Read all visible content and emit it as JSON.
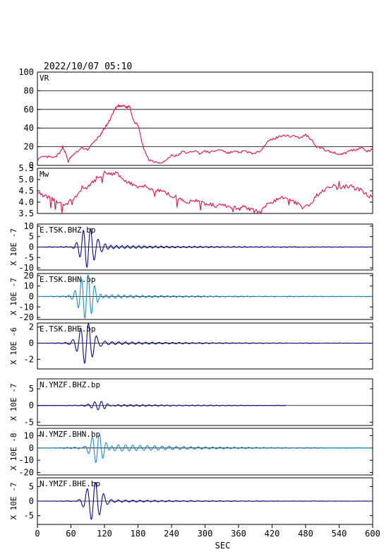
{
  "header": {
    "datetime": "2022/10/07  05:10"
  },
  "colors": {
    "vr": "#e0104a",
    "mw": "#e0104a",
    "dark_trace": "#0a0a8c",
    "light_trace": "#1a8fd0",
    "frame": "#000000"
  },
  "x_axis": {
    "label": "SEC",
    "ticks": [
      "0",
      "60",
      "120",
      "180",
      "240",
      "300",
      "360",
      "420",
      "480",
      "540",
      "600"
    ]
  },
  "panels": [
    {
      "id": "vr",
      "title": "VR",
      "unit": "",
      "ticks": [
        "100",
        "80",
        "60",
        "40",
        "20",
        "0"
      ]
    },
    {
      "id": "mw",
      "title": "Mw",
      "unit": "",
      "ticks": [
        "5.5",
        "5.0",
        "4.5",
        "4.0",
        "3.5"
      ]
    },
    {
      "id": "tsk_bhz",
      "title": "E.TSK.BHZ.bp",
      "unit": "X 10E -7",
      "ticks": [
        "10",
        "5",
        "0",
        "-5",
        "-10"
      ]
    },
    {
      "id": "tsk_bhn",
      "title": "E.TSK.BHN.bp",
      "unit": "X 10E -7",
      "ticks": [
        "20",
        "10",
        "0",
        "-10",
        "-20"
      ]
    },
    {
      "id": "tsk_bhe",
      "title": "E.TSK.BHE.bp",
      "unit": "X 10E -6",
      "ticks": [
        "2",
        "0",
        "-2"
      ]
    },
    {
      "id": "ymzf_bhz",
      "title": "N.YMZF.BHZ.bp",
      "unit": "X 10E -7",
      "ticks": [
        "5",
        "0",
        "-5"
      ]
    },
    {
      "id": "ymzf_bhn",
      "title": "N.YMZF.BHN.bp",
      "unit": "X 10E -8",
      "ticks": [
        "10",
        "0",
        "-10",
        "-20"
      ]
    },
    {
      "id": "ymzf_bhe",
      "title": "N.YMZF.BHE.bp",
      "unit": "X 10E -7",
      "ticks": [
        "5",
        "0",
        "-5"
      ]
    }
  ],
  "chart_data": {
    "type": "line",
    "x_range": [
      0,
      600
    ],
    "vr": {
      "ylim": [
        0,
        100
      ],
      "x": [
        0,
        10,
        20,
        30,
        40,
        45,
        50,
        55,
        60,
        70,
        80,
        90,
        100,
        110,
        115,
        120,
        125,
        130,
        135,
        140,
        145,
        150,
        155,
        160,
        165,
        170,
        175,
        180,
        185,
        190,
        200,
        210,
        220,
        230,
        240,
        250,
        260,
        270,
        280,
        290,
        300,
        310,
        320,
        330,
        340,
        350,
        360,
        370,
        380,
        390,
        400,
        410,
        420,
        430,
        440,
        450,
        460,
        470,
        480,
        490,
        500,
        510,
        520,
        530,
        540,
        550,
        560,
        570,
        580,
        590,
        600
      ],
      "y": [
        6,
        9,
        9,
        8,
        13,
        20,
        14,
        4,
        9,
        14,
        19,
        17,
        24,
        31,
        34,
        40,
        44,
        49,
        56,
        61,
        64,
        63,
        64,
        62,
        64,
        52,
        45,
        44,
        30,
        18,
        6,
        4,
        3,
        5,
        11,
        10,
        15,
        13,
        16,
        13,
        15,
        14,
        16,
        17,
        13,
        15,
        14,
        15,
        14,
        12,
        17,
        24,
        28,
        30,
        33,
        31,
        32,
        29,
        33,
        28,
        20,
        18,
        15,
        14,
        12,
        13,
        16,
        17,
        19,
        15,
        17
      ]
    },
    "mw": {
      "ylim": [
        3.5,
        5.5
      ],
      "x": [
        0,
        10,
        20,
        30,
        40,
        50,
        60,
        70,
        80,
        90,
        100,
        110,
        120,
        130,
        140,
        150,
        160,
        170,
        180,
        190,
        200,
        210,
        220,
        230,
        240,
        250,
        260,
        270,
        280,
        290,
        300,
        310,
        320,
        330,
        340,
        350,
        360,
        370,
        380,
        390,
        400,
        410,
        420,
        430,
        440,
        450,
        460,
        470,
        480,
        490,
        500,
        510,
        520,
        530,
        540,
        550,
        560,
        570,
        580,
        590,
        600
      ],
      "y": [
        4.5,
        4.3,
        4.2,
        4.1,
        4.0,
        3.9,
        4.1,
        4.3,
        4.5,
        4.7,
        4.9,
        5.1,
        5.3,
        5.2,
        5.3,
        5.1,
        4.9,
        4.8,
        4.6,
        4.7,
        4.6,
        4.5,
        4.5,
        4.4,
        4.3,
        4.2,
        4.1,
        4.0,
        4.1,
        4.0,
        3.9,
        3.9,
        3.8,
        3.9,
        3.8,
        3.8,
        3.7,
        3.8,
        3.7,
        3.6,
        3.6,
        3.9,
        4.0,
        4.1,
        4.2,
        4.1,
        4.0,
        3.9,
        3.8,
        3.9,
        4.3,
        4.5,
        4.6,
        4.7,
        4.6,
        4.7,
        4.7,
        4.6,
        4.5,
        4.3,
        4.2
      ]
    },
    "waveforms": [
      {
        "id": "tsk_bhz",
        "ylim": [
          -11,
          11
        ],
        "color": "dark_trace",
        "end": 600,
        "t_peak": 92,
        "amp": 10,
        "period": 13,
        "noise": 0.2,
        "coda": 1.1,
        "coda_period": 10
      },
      {
        "id": "tsk_bhn",
        "ylim": [
          -22,
          22
        ],
        "color": "light_trace",
        "end": 600,
        "t_peak": 88,
        "amp": 20,
        "period": 12,
        "noise": 0.5,
        "coda": 2.2,
        "coda_period": 11
      },
      {
        "id": "tsk_bhe",
        "ylim": [
          -3.2,
          2.5
        ],
        "color": "dark_trace",
        "end": 600,
        "t_peak": 88,
        "amp": 2.8,
        "period": 14,
        "noise": 0.04,
        "coda": 0.25,
        "coda_period": 12
      },
      {
        "id": "ymzf_bhz",
        "ylim": [
          -6,
          8
        ],
        "color": "dark_trace",
        "end": 445,
        "t_peak": 112,
        "amp": 1.4,
        "period": 12,
        "noise": 0.1,
        "coda": 0.35,
        "coda_period": 11
      },
      {
        "id": "ymzf_bhn",
        "ylim": [
          -22,
          16
        ],
        "color": "light_trace",
        "end": 600,
        "t_peak": 108,
        "amp": 15,
        "period": 13,
        "noise": 0.4,
        "coda": 3.5,
        "coda_period": 13
      },
      {
        "id": "ymzf_bhe",
        "ylim": [
          -8,
          8
        ],
        "color": "dark_trace",
        "end": 600,
        "t_peak": 100,
        "amp": 6.5,
        "period": 15,
        "noise": 0.1,
        "coda": 0.5,
        "coda_period": 13
      }
    ]
  }
}
